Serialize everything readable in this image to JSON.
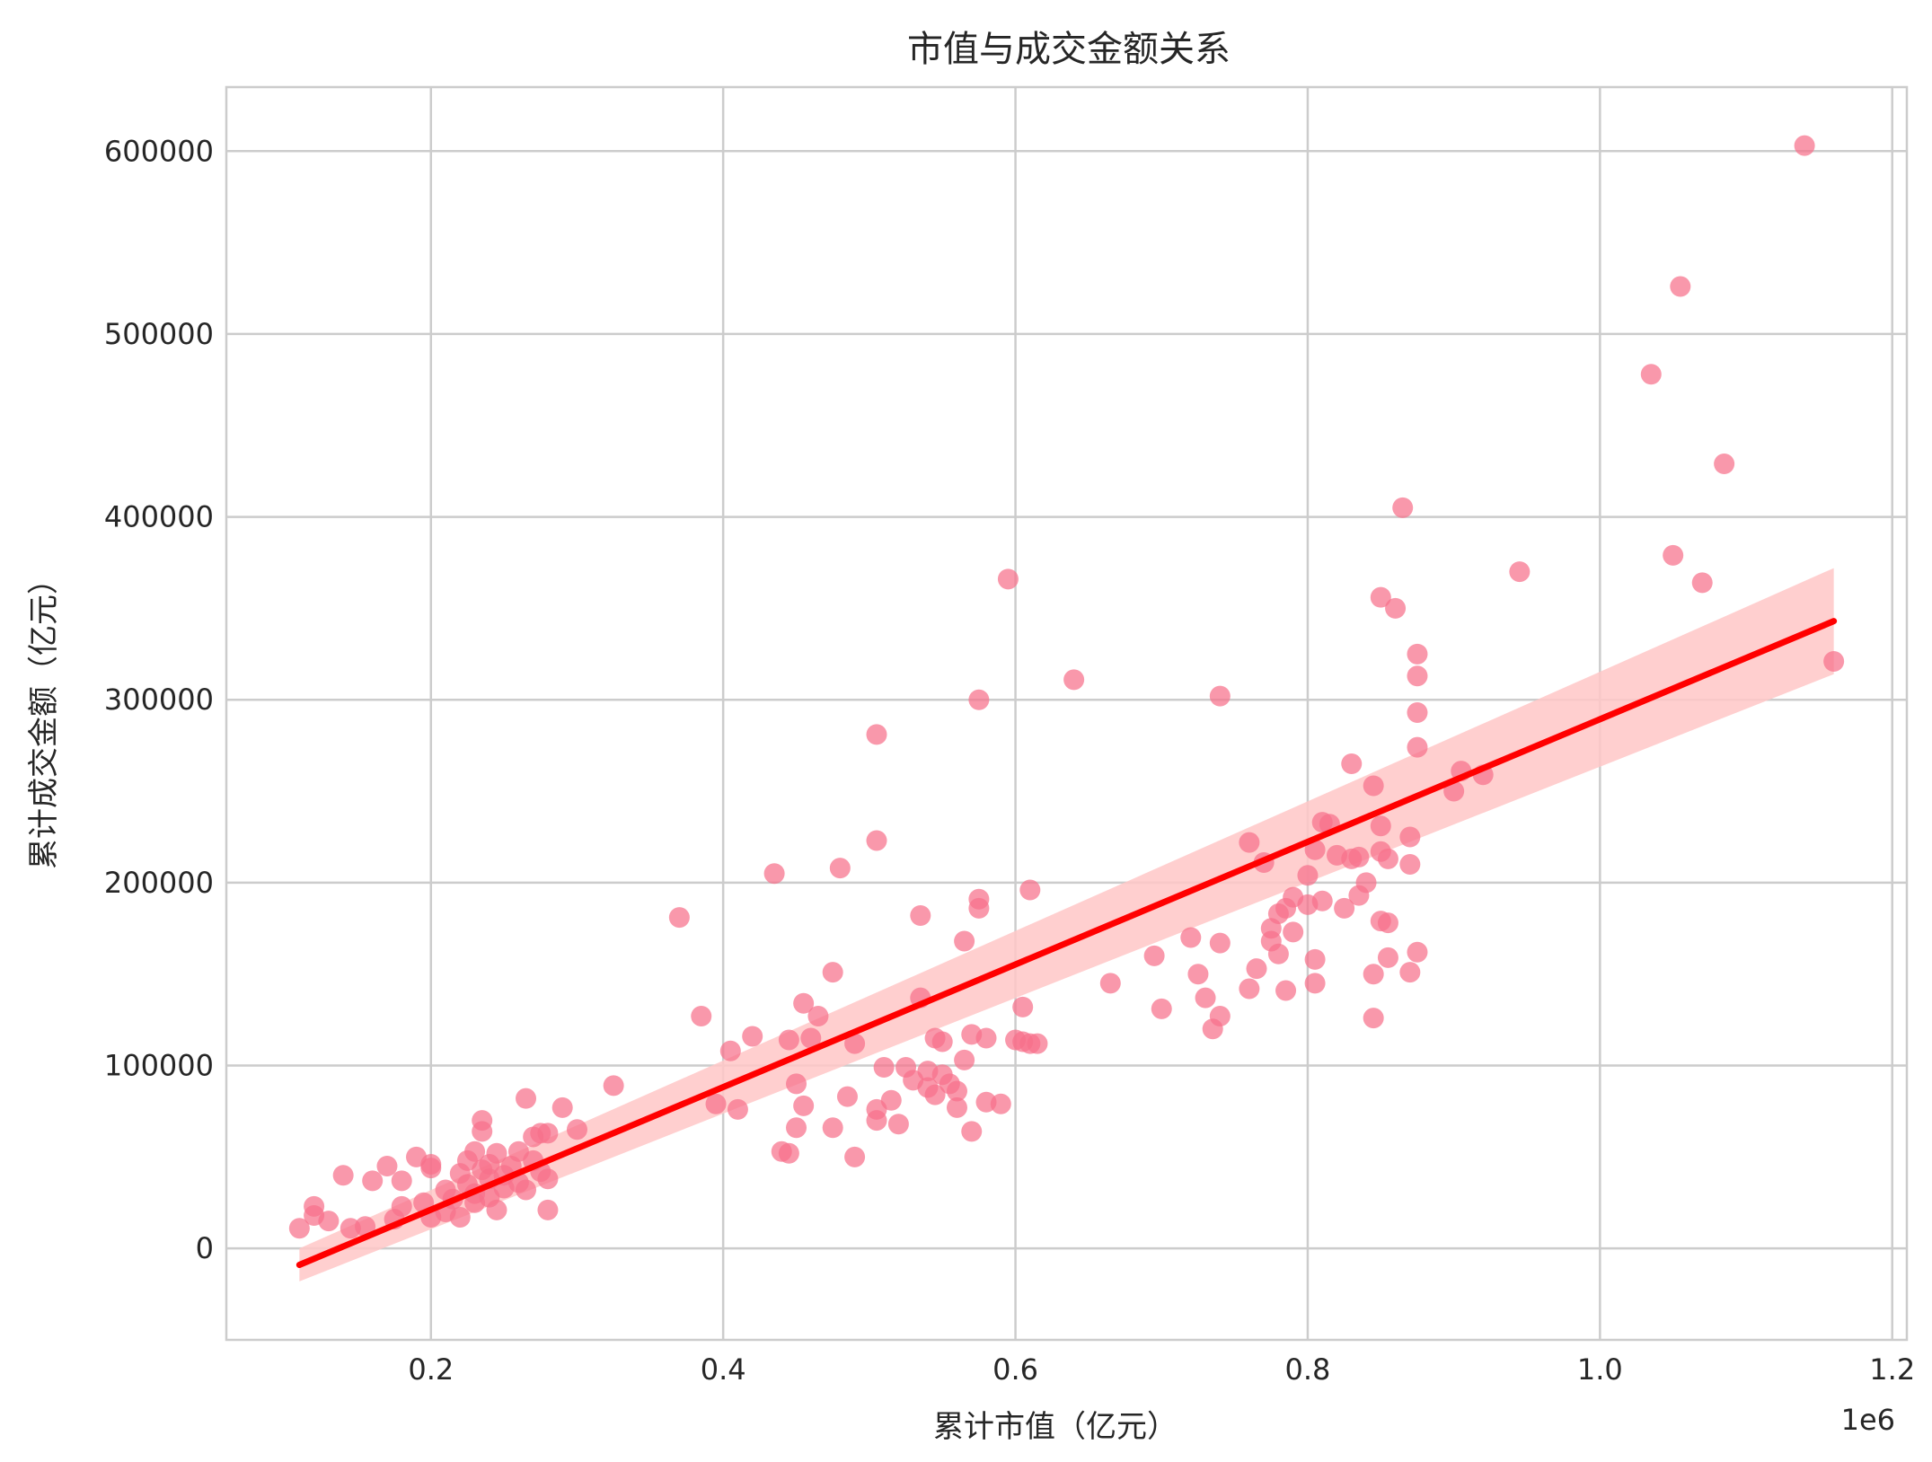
{
  "chart_data": {
    "type": "scatter",
    "title": "市值与成交金额关系",
    "xlabel": "累计市值（亿元）",
    "ylabel": "累计成交金额（亿元）",
    "x_offset_label": "1e6",
    "xlim": [
      0.06,
      1.21
    ],
    "ylim": [
      -50000,
      635000
    ],
    "x_ticks": [
      0.2,
      0.4,
      0.6,
      0.8,
      1.0,
      1.2
    ],
    "x_tick_labels": [
      "0.2",
      "0.4",
      "0.6",
      "0.8",
      "1.0",
      "1.2"
    ],
    "y_ticks": [
      0,
      100000,
      200000,
      300000,
      400000,
      500000,
      600000
    ],
    "y_tick_labels": [
      "0",
      "100000",
      "200000",
      "300000",
      "400000",
      "500000",
      "600000"
    ],
    "grid": true,
    "colors": {
      "points": "#f7708a",
      "regression": "#ff0000",
      "ci_band": "#ffc7c7",
      "grid": "#cccccc"
    },
    "regression": {
      "x": [
        0.11,
        1.16
      ],
      "y": [
        -9000,
        343000
      ],
      "ci_lower": [
        -18000,
        314000
      ],
      "ci_upper": [
        0,
        372000
      ]
    },
    "points": [
      [
        0.11,
        11000
      ],
      [
        0.12,
        23000
      ],
      [
        0.12,
        18000
      ],
      [
        0.13,
        15000
      ],
      [
        0.14,
        40000
      ],
      [
        0.145,
        11000
      ],
      [
        0.155,
        12000
      ],
      [
        0.16,
        37000
      ],
      [
        0.17,
        45000
      ],
      [
        0.175,
        16000
      ],
      [
        0.18,
        37000
      ],
      [
        0.18,
        23000
      ],
      [
        0.19,
        50000
      ],
      [
        0.195,
        25000
      ],
      [
        0.2,
        44000
      ],
      [
        0.2,
        17000
      ],
      [
        0.2,
        46000
      ],
      [
        0.21,
        32000
      ],
      [
        0.21,
        20000
      ],
      [
        0.215,
        27000
      ],
      [
        0.22,
        41000
      ],
      [
        0.22,
        17000
      ],
      [
        0.225,
        35000
      ],
      [
        0.225,
        48000
      ],
      [
        0.23,
        25000
      ],
      [
        0.23,
        53000
      ],
      [
        0.23,
        30000
      ],
      [
        0.235,
        43000
      ],
      [
        0.235,
        70000
      ],
      [
        0.235,
        64000
      ],
      [
        0.24,
        38000
      ],
      [
        0.24,
        46000
      ],
      [
        0.24,
        28000
      ],
      [
        0.245,
        52000
      ],
      [
        0.245,
        21000
      ],
      [
        0.25,
        40000
      ],
      [
        0.25,
        33000
      ],
      [
        0.255,
        45000
      ],
      [
        0.26,
        36000
      ],
      [
        0.26,
        53000
      ],
      [
        0.265,
        82000
      ],
      [
        0.265,
        32000
      ],
      [
        0.27,
        61000
      ],
      [
        0.27,
        48000
      ],
      [
        0.275,
        42000
      ],
      [
        0.275,
        63000
      ],
      [
        0.28,
        38000
      ],
      [
        0.28,
        21000
      ],
      [
        0.28,
        63000
      ],
      [
        0.29,
        77000
      ],
      [
        0.3,
        65000
      ],
      [
        0.325,
        89000
      ],
      [
        0.37,
        181000
      ],
      [
        0.385,
        127000
      ],
      [
        0.395,
        79000
      ],
      [
        0.405,
        108000
      ],
      [
        0.41,
        76000
      ],
      [
        0.42,
        116000
      ],
      [
        0.435,
        205000
      ],
      [
        0.44,
        53000
      ],
      [
        0.445,
        52000
      ],
      [
        0.445,
        114000
      ],
      [
        0.45,
        90000
      ],
      [
        0.45,
        66000
      ],
      [
        0.455,
        134000
      ],
      [
        0.455,
        78000
      ],
      [
        0.46,
        115000
      ],
      [
        0.465,
        127000
      ],
      [
        0.475,
        151000
      ],
      [
        0.475,
        66000
      ],
      [
        0.48,
        208000
      ],
      [
        0.485,
        83000
      ],
      [
        0.49,
        50000
      ],
      [
        0.49,
        112000
      ],
      [
        0.505,
        223000
      ],
      [
        0.505,
        281000
      ],
      [
        0.505,
        76000
      ],
      [
        0.505,
        70000
      ],
      [
        0.51,
        99000
      ],
      [
        0.515,
        81000
      ],
      [
        0.52,
        68000
      ],
      [
        0.525,
        99000
      ],
      [
        0.53,
        92000
      ],
      [
        0.535,
        137000
      ],
      [
        0.535,
        182000
      ],
      [
        0.54,
        97000
      ],
      [
        0.54,
        88000
      ],
      [
        0.545,
        115000
      ],
      [
        0.545,
        84000
      ],
      [
        0.55,
        113000
      ],
      [
        0.55,
        95000
      ],
      [
        0.555,
        90000
      ],
      [
        0.56,
        86000
      ],
      [
        0.56,
        77000
      ],
      [
        0.565,
        168000
      ],
      [
        0.565,
        103000
      ],
      [
        0.57,
        117000
      ],
      [
        0.57,
        64000
      ],
      [
        0.575,
        300000
      ],
      [
        0.575,
        191000
      ],
      [
        0.575,
        186000
      ],
      [
        0.58,
        115000
      ],
      [
        0.58,
        80000
      ],
      [
        0.59,
        79000
      ],
      [
        0.595,
        366000
      ],
      [
        0.6,
        114000
      ],
      [
        0.605,
        113000
      ],
      [
        0.605,
        132000
      ],
      [
        0.61,
        112000
      ],
      [
        0.61,
        196000
      ],
      [
        0.615,
        112000
      ],
      [
        0.64,
        311000
      ],
      [
        0.665,
        145000
      ],
      [
        0.695,
        160000
      ],
      [
        0.7,
        131000
      ],
      [
        0.72,
        170000
      ],
      [
        0.725,
        150000
      ],
      [
        0.73,
        137000
      ],
      [
        0.735,
        120000
      ],
      [
        0.74,
        127000
      ],
      [
        0.74,
        167000
      ],
      [
        0.74,
        302000
      ],
      [
        0.76,
        222000
      ],
      [
        0.76,
        142000
      ],
      [
        0.765,
        153000
      ],
      [
        0.77,
        211000
      ],
      [
        0.775,
        175000
      ],
      [
        0.775,
        168000
      ],
      [
        0.78,
        183000
      ],
      [
        0.78,
        161000
      ],
      [
        0.785,
        141000
      ],
      [
        0.785,
        186000
      ],
      [
        0.79,
        192000
      ],
      [
        0.79,
        173000
      ],
      [
        0.8,
        188000
      ],
      [
        0.8,
        204000
      ],
      [
        0.805,
        218000
      ],
      [
        0.805,
        158000
      ],
      [
        0.805,
        145000
      ],
      [
        0.81,
        233000
      ],
      [
        0.81,
        190000
      ],
      [
        0.815,
        232000
      ],
      [
        0.82,
        215000
      ],
      [
        0.825,
        186000
      ],
      [
        0.83,
        213000
      ],
      [
        0.83,
        265000
      ],
      [
        0.835,
        193000
      ],
      [
        0.835,
        214000
      ],
      [
        0.84,
        200000
      ],
      [
        0.845,
        253000
      ],
      [
        0.845,
        150000
      ],
      [
        0.845,
        126000
      ],
      [
        0.85,
        356000
      ],
      [
        0.85,
        231000
      ],
      [
        0.85,
        217000
      ],
      [
        0.85,
        179000
      ],
      [
        0.855,
        159000
      ],
      [
        0.855,
        213000
      ],
      [
        0.855,
        178000
      ],
      [
        0.86,
        350000
      ],
      [
        0.865,
        405000
      ],
      [
        0.87,
        225000
      ],
      [
        0.87,
        210000
      ],
      [
        0.87,
        151000
      ],
      [
        0.875,
        325000
      ],
      [
        0.875,
        313000
      ],
      [
        0.875,
        274000
      ],
      [
        0.875,
        293000
      ],
      [
        0.875,
        162000
      ],
      [
        0.9,
        250000
      ],
      [
        0.905,
        261000
      ],
      [
        0.92,
        259000
      ],
      [
        0.945,
        370000
      ],
      [
        1.035,
        478000
      ],
      [
        1.05,
        379000
      ],
      [
        1.055,
        526000
      ],
      [
        1.07,
        364000
      ],
      [
        1.085,
        429000
      ],
      [
        1.14,
        603000
      ],
      [
        1.16,
        321000
      ]
    ]
  }
}
